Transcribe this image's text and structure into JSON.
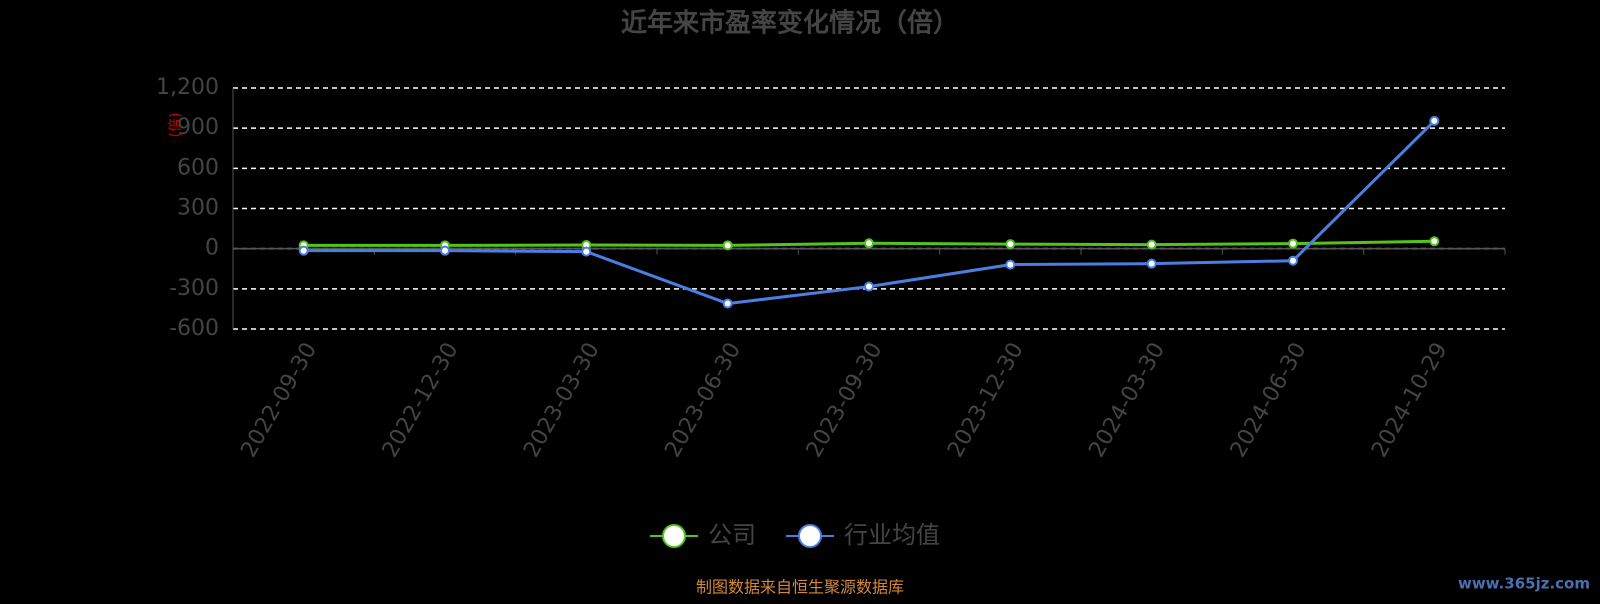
{
  "chart_data": {
    "type": "line",
    "title": "近年来市盈率变化情况（倍）",
    "y_label": "(倍)",
    "categories": [
      "2022-09-30",
      "2022-12-30",
      "2023-03-30",
      "2023-06-30",
      "2023-09-30",
      "2023-12-30",
      "2024-03-30",
      "2024-06-30",
      "2024-10-29"
    ],
    "series": [
      {
        "name": "公司",
        "color": "#52c41a",
        "values": [
          25,
          25,
          27,
          25,
          40,
          34,
          30,
          38,
          55
        ]
      },
      {
        "name": "行业均值",
        "color": "#4a7ee0",
        "values": [
          -15,
          -15,
          -22,
          -410,
          -283,
          -119,
          -112,
          -90,
          954
        ]
      }
    ],
    "ylim": [
      -600,
      1200
    ],
    "yticks": [
      {
        "value": 1200,
        "label": "1,200"
      },
      900,
      600,
      300,
      0,
      -300,
      -600
    ],
    "grid": true,
    "source": "制图数据来自恒生聚源数据库",
    "watermark": "www.365jz.com"
  }
}
